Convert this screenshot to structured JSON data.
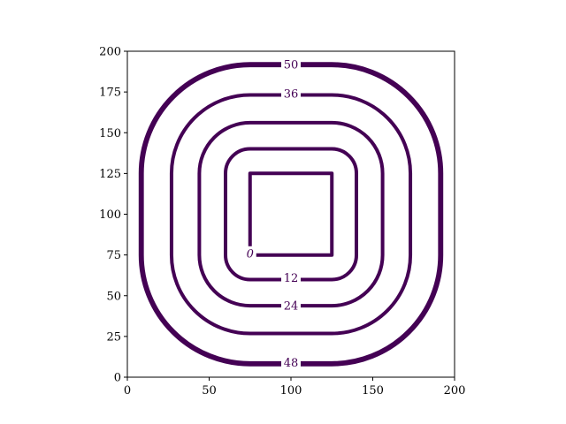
{
  "chart_data": {
    "type": "contour",
    "title": "",
    "xlabel": "",
    "ylabel": "",
    "xlim": [
      0,
      200
    ],
    "ylim": [
      0,
      200
    ],
    "x_ticks": [
      0,
      50,
      100,
      150,
      200
    ],
    "y_ticks": [
      0,
      25,
      50,
      75,
      100,
      125,
      150,
      175,
      200
    ],
    "x_tick_labels": [
      "0",
      "50",
      "100",
      "150",
      "200"
    ],
    "y_tick_labels": [
      "0",
      "25",
      "50",
      "75",
      "100",
      "125",
      "150",
      "175",
      "200"
    ],
    "grid": false,
    "line_color": "#440154",
    "center": [
      100,
      100
    ],
    "inner_square_half_size": 25,
    "contours": [
      {
        "level_label": "0",
        "offset": 0,
        "label_at": [
          75,
          76
        ]
      },
      {
        "level_label": "12",
        "offset": 15,
        "label_at": [
          100,
          61
        ]
      },
      {
        "level_label": "24",
        "offset": 31,
        "label_at": [
          100,
          44
        ]
      },
      {
        "level_label": "36",
        "offset": 48,
        "label_at": [
          100,
          174
        ]
      },
      {
        "level_label": "48",
        "offset": 66,
        "label_at": [
          100,
          9
        ]
      },
      {
        "level_label": "50",
        "offset": 67,
        "label_at": [
          100,
          192
        ]
      }
    ]
  }
}
